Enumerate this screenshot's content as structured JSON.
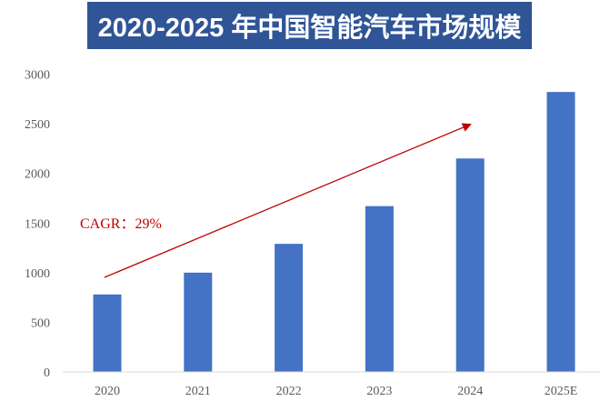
{
  "chart_data": {
    "type": "bar",
    "title": "2020-2025 年中国智能汽车市场规模",
    "categories": [
      "2020",
      "2021",
      "2022",
      "2023",
      "2024",
      "2025E"
    ],
    "values": [
      780,
      1000,
      1290,
      1670,
      2150,
      2820
    ],
    "xlabel": "",
    "ylabel": "",
    "ylim": [
      0,
      3000
    ],
    "yticks": [
      0,
      500,
      1000,
      1500,
      2000,
      2500,
      3000
    ],
    "grid": false,
    "legend": "none",
    "annotation": {
      "text": "CAGR：29%",
      "arrow": "rising from 2020 to 2024"
    },
    "colors": {
      "bar": "#4472c4",
      "title_bg": "#2f5597",
      "annotation": "#c00000",
      "axis_text": "#595959"
    }
  }
}
